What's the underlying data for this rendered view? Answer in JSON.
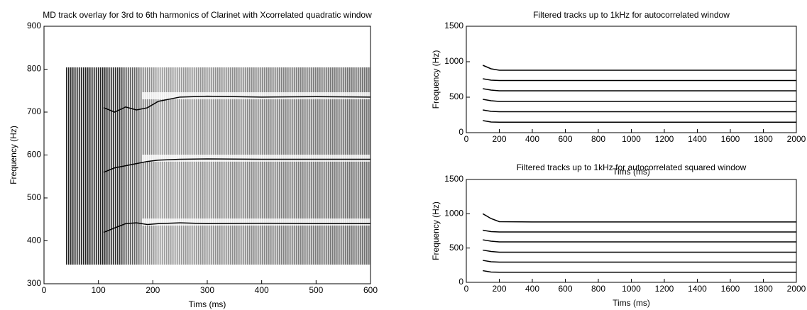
{
  "chart_data": [
    {
      "type": "line",
      "title": "MD track overlay for 3rd to 6th harmonics of Clarinet with Xcorrelated quadratic window",
      "xlabel": "Tims (ms)",
      "ylabel": "Frequency (Hz)",
      "xlim": [
        0,
        600
      ],
      "xticks": [
        0,
        100,
        200,
        300,
        400,
        500,
        600
      ],
      "ylim": [
        300,
        900
      ],
      "yticks": [
        300,
        400,
        500,
        600,
        700,
        800,
        900
      ],
      "x": [
        110,
        130,
        150,
        170,
        190,
        210,
        250,
        300,
        400,
        500,
        600
      ],
      "series": [
        {
          "color": "#000000",
          "values": [
            710,
            700,
            712,
            705,
            710,
            725,
            735,
            737,
            735,
            736,
            735
          ]
        },
        {
          "color": "#000000",
          "values": [
            560,
            570,
            575,
            580,
            585,
            588,
            590,
            591,
            590,
            590,
            590
          ]
        },
        {
          "color": "#000000",
          "values": [
            420,
            430,
            440,
            442,
            438,
            440,
            442,
            440,
            441,
            440,
            440
          ]
        }
      ]
    },
    {
      "type": "line",
      "title": "Filtered tracks up to 1kHz for autocorrelated window",
      "xlabel": "Tims (ms)",
      "ylabel": "Frequency (Hz)",
      "xlim": [
        0,
        2000
      ],
      "xticks": [
        0,
        200,
        400,
        600,
        800,
        1000,
        1200,
        1400,
        1600,
        1800,
        2000
      ],
      "ylim": [
        0,
        1500
      ],
      "yticks": [
        0,
        500,
        1000,
        1500
      ],
      "x": [
        100,
        150,
        200,
        400,
        800,
        1200,
        1600,
        2000
      ],
      "series": [
        {
          "color": "#000000",
          "values": [
            950,
            900,
            880,
            880,
            880,
            880,
            880,
            880
          ]
        },
        {
          "color": "#000000",
          "values": [
            760,
            740,
            735,
            735,
            735,
            735,
            735,
            735
          ]
        },
        {
          "color": "#000000",
          "values": [
            620,
            600,
            590,
            590,
            590,
            590,
            590,
            590
          ]
        },
        {
          "color": "#000000",
          "values": [
            470,
            450,
            440,
            440,
            440,
            440,
            440,
            440
          ]
        },
        {
          "color": "#000000",
          "values": [
            320,
            300,
            295,
            295,
            295,
            295,
            295,
            295
          ]
        },
        {
          "color": "#000000",
          "values": [
            170,
            150,
            147,
            147,
            147,
            147,
            147,
            147
          ]
        }
      ]
    },
    {
      "type": "line",
      "title": "Filtered tracks up to 1kHz for autocorrelated squared window",
      "xlabel": "Tims (ms)",
      "ylabel": "Frequency (Hz)",
      "xlim": [
        0,
        2000
      ],
      "xticks": [
        0,
        200,
        400,
        600,
        800,
        1000,
        1200,
        1400,
        1600,
        1800,
        2000
      ],
      "ylim": [
        0,
        1500
      ],
      "yticks": [
        0,
        500,
        1000,
        1500
      ],
      "x": [
        100,
        150,
        200,
        400,
        800,
        1200,
        1600,
        2000
      ],
      "series": [
        {
          "color": "#000000",
          "values": [
            1000,
            930,
            885,
            880,
            880,
            880,
            880,
            880
          ]
        },
        {
          "color": "#000000",
          "values": [
            760,
            740,
            735,
            735,
            735,
            735,
            735,
            735
          ]
        },
        {
          "color": "#000000",
          "values": [
            620,
            600,
            590,
            590,
            590,
            590,
            590,
            590
          ]
        },
        {
          "color": "#000000",
          "values": [
            470,
            450,
            440,
            440,
            440,
            440,
            440,
            440
          ]
        },
        {
          "color": "#000000",
          "values": [
            320,
            300,
            295,
            295,
            295,
            295,
            295,
            295
          ]
        },
        {
          "color": "#000000",
          "values": [
            170,
            150,
            147,
            147,
            147,
            147,
            147,
            147
          ]
        }
      ]
    }
  ]
}
